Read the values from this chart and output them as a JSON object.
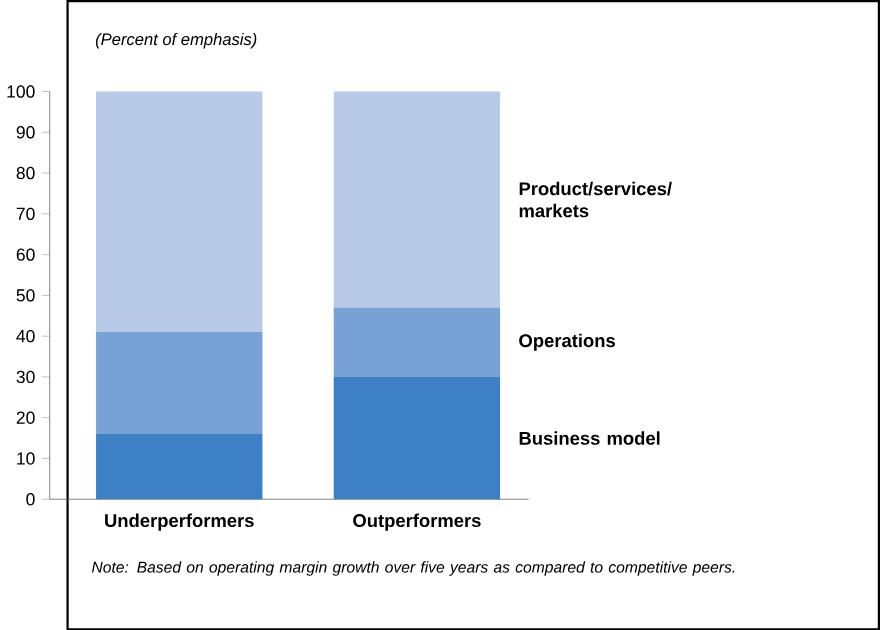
{
  "chart_data": {
    "type": "bar",
    "stacked": true,
    "ylabel": "(Percent of emphasis)",
    "categories": [
      "Underperformers",
      "Outperformers"
    ],
    "series": [
      {
        "name": "Business model",
        "color": "#3d80c6",
        "values": [
          16,
          30
        ]
      },
      {
        "name": "Operations",
        "color": "#78a2d5",
        "values": [
          25,
          17
        ]
      },
      {
        "name": "Product/services/ markets",
        "color": "#b8c9e8",
        "values": [
          59,
          53
        ]
      }
    ],
    "ylim": [
      0,
      100
    ],
    "yticks": [
      0,
      10,
      20,
      30,
      40,
      50,
      60,
      70,
      80,
      90,
      100
    ],
    "grid": false,
    "annotations": [
      "Note: Based on operating margin growth over five years as compared to competitive peers."
    ]
  }
}
